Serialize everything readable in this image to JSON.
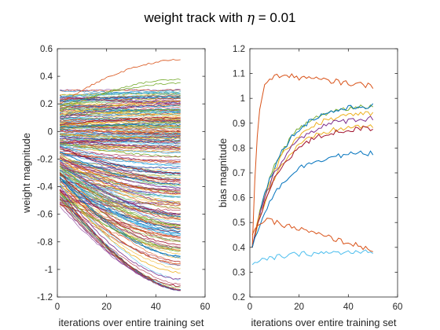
{
  "title": "weight track with η = 0.01",
  "title_parts": {
    "prefix": "weight track with ",
    "symbol": "η",
    "suffix": " = 0.01"
  },
  "chart_data": [
    {
      "type": "line",
      "xlabel": "iterations over entire training set",
      "ylabel": "weight magnitude",
      "xlim": [
        0,
        60
      ],
      "ylim": [
        -1.2,
        0.6
      ],
      "x_ticks": [
        0,
        20,
        40,
        60
      ],
      "x_tick_labels": [
        "0",
        "20",
        "40",
        "60"
      ],
      "y_ticks": [
        -1.2,
        -1,
        -0.8,
        -0.6,
        -0.4,
        -0.2,
        0,
        0.2,
        0.4,
        0.6
      ],
      "y_tick_labels": [
        "-1.2",
        "-1",
        "-0.8",
        "-0.6",
        "-0.4",
        "-0.2",
        "0",
        "0.2",
        "0.4",
        "0.6"
      ],
      "grid": false,
      "x_range": [
        1,
        50
      ],
      "points_per_series": 50,
      "note": "Several hundred weight trajectories; values at iteration 1 and 50 are read from the plot.",
      "series": [
        {
          "start": 0.2,
          "end": 0.52,
          "color": "#D95319"
        },
        {
          "start": 0.18,
          "end": 0.35,
          "color": "#77AC30"
        },
        {
          "start": 0.15,
          "end": 0.38,
          "color": "#77AC30"
        },
        {
          "start": 0.22,
          "end": 0.25,
          "color": "#0072BD"
        },
        {
          "start": 0.12,
          "end": 0.22,
          "color": "#EDB120"
        },
        {
          "start": 0.1,
          "end": 0.2,
          "color": "#7E2F8E"
        },
        {
          "start": 0.08,
          "end": 0.14,
          "color": "#4DBEEE"
        },
        {
          "start": 0.05,
          "end": 0.1,
          "color": "#A2142F"
        },
        {
          "start": 0.03,
          "end": 0.05,
          "color": "#0072BD"
        },
        {
          "start": 0.0,
          "end": 0.0,
          "color": "#D95319"
        },
        {
          "start": -0.02,
          "end": -0.05,
          "color": "#EDB120"
        },
        {
          "start": -0.05,
          "end": -0.12,
          "color": "#7E2F8E"
        },
        {
          "start": -0.08,
          "end": -0.18,
          "color": "#77AC30"
        },
        {
          "start": -0.1,
          "end": -0.25,
          "color": "#4DBEEE"
        },
        {
          "start": -0.12,
          "end": -0.3,
          "color": "#A2142F"
        },
        {
          "start": -0.15,
          "end": -0.38,
          "color": "#0072BD"
        },
        {
          "start": -0.18,
          "end": -0.45,
          "color": "#D95319"
        },
        {
          "start": -0.2,
          "end": -0.52,
          "color": "#EDB120"
        },
        {
          "start": -0.22,
          "end": -0.6,
          "color": "#7E2F8E"
        },
        {
          "start": -0.25,
          "end": -0.68,
          "color": "#77AC30"
        },
        {
          "start": -0.28,
          "end": -0.75,
          "color": "#4DBEEE"
        },
        {
          "start": -0.3,
          "end": -0.82,
          "color": "#A2142F"
        },
        {
          "start": -0.33,
          "end": -0.9,
          "color": "#0072BD"
        },
        {
          "start": -0.35,
          "end": -0.96,
          "color": "#D95319"
        },
        {
          "start": -0.38,
          "end": -1.02,
          "color": "#EDB120"
        },
        {
          "start": -0.4,
          "end": -1.07,
          "color": "#7E2F8E"
        },
        {
          "start": -0.42,
          "end": -1.12,
          "color": "#A2142F"
        },
        {
          "start": 0.25,
          "end": 0.28,
          "color": "#4DBEEE"
        },
        {
          "start": -0.45,
          "end": -0.85,
          "color": "#77AC30"
        },
        {
          "start": -0.35,
          "end": -0.7,
          "color": "#0072BD"
        }
      ],
      "band_color_cycle": [
        "#0072BD",
        "#D95319",
        "#EDB120",
        "#7E2F8E",
        "#77AC30",
        "#4DBEEE",
        "#A2142F"
      ]
    },
    {
      "type": "line",
      "xlabel": "iterations over entire training set",
      "ylabel": "bias magnitude",
      "xlim": [
        0,
        60
      ],
      "ylim": [
        0.2,
        1.2
      ],
      "x_ticks": [
        0,
        20,
        40,
        60
      ],
      "x_tick_labels": [
        "0",
        "20",
        "40",
        "60"
      ],
      "y_ticks": [
        0.2,
        0.3,
        0.4,
        0.5,
        0.6,
        0.7,
        0.8,
        0.9,
        1,
        1.1,
        1.2
      ],
      "y_tick_labels": [
        "0.2",
        "0.3",
        "0.4",
        "0.5",
        "0.6",
        "0.7",
        "0.8",
        "0.9",
        "1",
        "1.1",
        "1.2"
      ],
      "grid": false,
      "x_range": [
        1,
        50
      ],
      "points_per_series": 50,
      "series": [
        {
          "start": 0.4,
          "end": 1.05,
          "peak": 1.1,
          "color": "#D95319"
        },
        {
          "start": 0.4,
          "end": 0.97,
          "peak": 0.97,
          "color": "#77AC30"
        },
        {
          "start": 0.4,
          "end": 0.97,
          "peak": 0.97,
          "color": "#0072BD"
        },
        {
          "start": 0.4,
          "end": 0.94,
          "peak": 0.94,
          "color": "#EDB120"
        },
        {
          "start": 0.4,
          "end": 0.92,
          "peak": 0.92,
          "color": "#7E2F8E"
        },
        {
          "start": 0.4,
          "end": 0.89,
          "peak": 0.89,
          "color": "#EDB120"
        },
        {
          "start": 0.4,
          "end": 0.88,
          "peak": 0.88,
          "color": "#A2142F"
        },
        {
          "start": 0.4,
          "end": 0.78,
          "peak": 0.78,
          "color": "#0072BD"
        },
        {
          "start": 0.45,
          "end": 0.39,
          "peak": 0.51,
          "color": "#D95319"
        },
        {
          "start": 0.33,
          "end": 0.38,
          "peak": 0.38,
          "color": "#4DBEEE"
        }
      ]
    }
  ]
}
